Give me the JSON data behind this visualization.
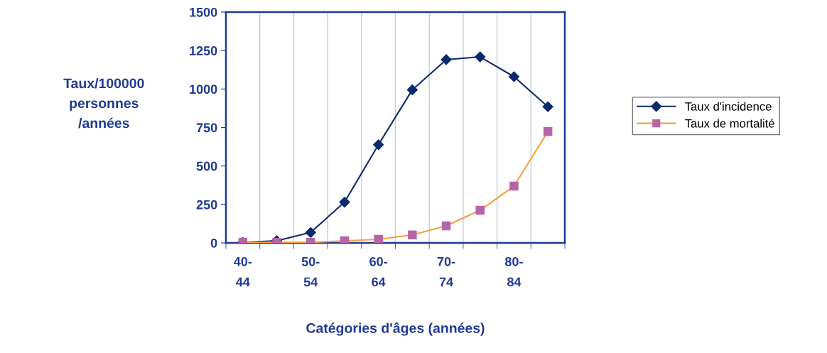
{
  "chart_data": {
    "type": "line",
    "xlabel": "Catégories d'âges (années)",
    "ylabel": "Taux/100000\npersonnes\n/années",
    "categories": [
      "40-\n44",
      null,
      "50-\n54",
      null,
      "60-\n64",
      null,
      "70-\n74",
      null,
      "80-\n84",
      null
    ],
    "series": [
      {
        "name": "Taux d'incidence",
        "color": "#0a2a6e",
        "marker": "diamond",
        "values": [
          3,
          14,
          68,
          265,
          638,
          995,
          1191,
          1209,
          1080,
          885
        ]
      },
      {
        "name": "Taux de mortalité",
        "color": "#b565a7",
        "marker": "square",
        "values": [
          3,
          3,
          3,
          14,
          23,
          52,
          111,
          212,
          369,
          723
        ]
      }
    ],
    "ylim": [
      0,
      1500
    ],
    "yticks": [
      0,
      250,
      500,
      750,
      1000,
      1250,
      1500
    ],
    "grid": "x",
    "legend": "right"
  }
}
